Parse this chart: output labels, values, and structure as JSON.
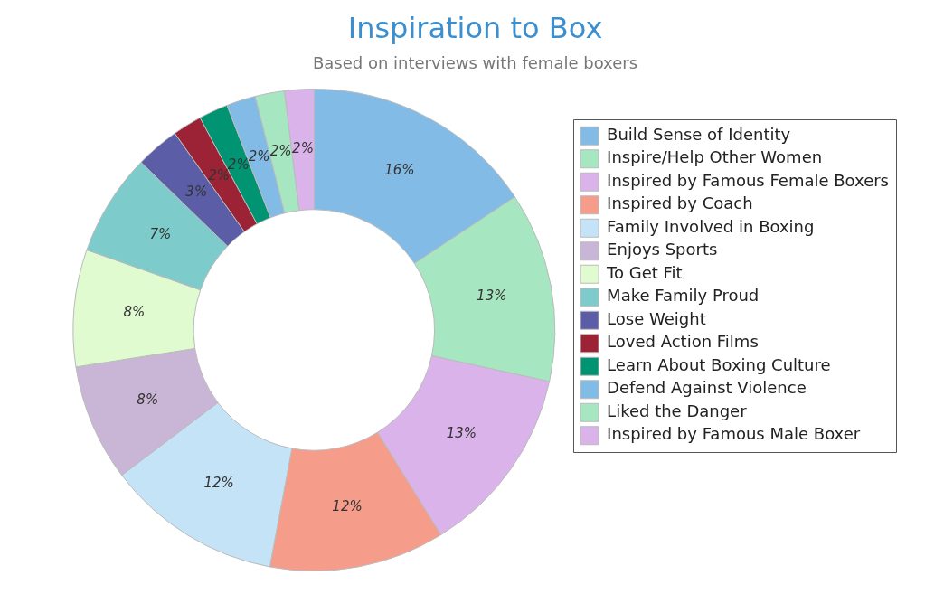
{
  "chart_data": {
    "type": "donut",
    "title": "Inspiration to Box",
    "subtitle": "Based on interviews with female boxers",
    "categories": [
      "Build Sense of Identity",
      "Inspire/Help Other Women",
      "Inspired by Famous Female Boxers",
      "Inspired by Coach",
      "Family Involved in Boxing",
      "Enjoys Sports",
      "To Get Fit",
      "Make Family Proud",
      "Lose Weight",
      "Loved Action Films",
      "Learn About Boxing Culture",
      "Defend Against Violence",
      "Liked the Danger",
      "Inspired by Famous Male Boxer"
    ],
    "values": [
      16,
      13,
      13,
      12,
      12,
      8,
      8,
      7,
      3,
      2,
      2,
      2,
      2,
      2
    ],
    "value_labels": [
      "16%",
      "13%",
      "13%",
      "12%",
      "12%",
      "8%",
      "8%",
      "7%",
      "3%",
      "2%",
      "2%",
      "2%",
      "2%",
      "2%"
    ],
    "colors": [
      "#82bbe6",
      "#a6e6c1",
      "#dab3ea",
      "#f59d8a",
      "#c5e3f7",
      "#c9b6d6",
      "#dffbcf",
      "#7ecbcc",
      "#5b5da6",
      "#9b2335",
      "#009473",
      "#82bbe6",
      "#a6e6c1",
      "#dab3ea"
    ],
    "legend": "right"
  }
}
